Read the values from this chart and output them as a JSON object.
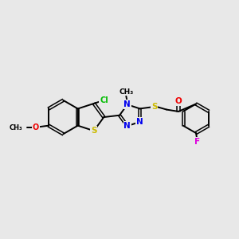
{
  "bg_color": "#e8e8e8",
  "bond_color": "#000000",
  "atom_colors": {
    "Cl": "#00bb00",
    "S": "#ccbb00",
    "N": "#0000ee",
    "O": "#ee0000",
    "F": "#dd00dd",
    "C": "#000000"
  },
  "figsize": [
    3.0,
    3.0
  ],
  "dpi": 100
}
